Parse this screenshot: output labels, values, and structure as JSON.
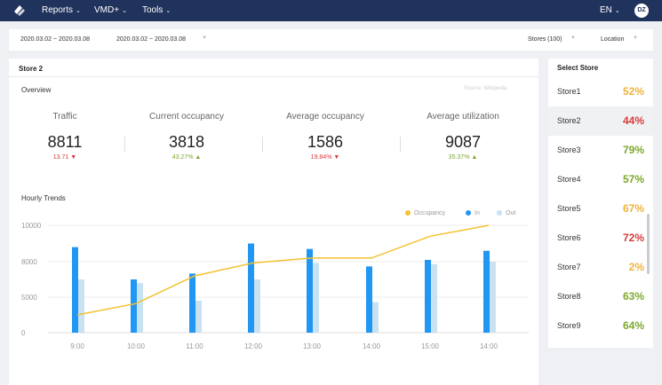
{
  "nav": {
    "menus": [
      {
        "label": "Reports"
      },
      {
        "label": "VMD+"
      },
      {
        "label": "Tools"
      }
    ],
    "language": "EN",
    "avatar_initials": "DZ",
    "colors": {
      "bar": "#20335c"
    }
  },
  "filters": {
    "date_range_1": "2020.03.02  ~  2020.03.08",
    "date_range_2": "2020.03.02  ~  2020.03.08",
    "stores": "Stores (100)",
    "location": "Location"
  },
  "main": {
    "title": "Store 2",
    "overview": {
      "title": "Overview",
      "source": "Source: Wikipedia",
      "kpis": [
        {
          "label": "Traffic",
          "value": "8811",
          "delta": "13.71",
          "trend": "down"
        },
        {
          "label": "Current occupancy",
          "value": "3818",
          "delta": "43.27%",
          "trend": "up"
        },
        {
          "label": "Average occupancy",
          "value": "1586",
          "delta": "19.84%",
          "trend": "down"
        },
        {
          "label": "Average utilization",
          "value": "9087",
          "delta": "35.37%",
          "trend": "up"
        }
      ],
      "colors": {
        "down": "#d93a3a",
        "up": "#7ca82b"
      }
    },
    "hourly": {
      "title": "Hourly Trends"
    }
  },
  "chart_data": {
    "type": "bar",
    "title": "Hourly Trends",
    "categories": [
      "9:00",
      "10:00",
      "11:00",
      "12:00",
      "13:00",
      "14:00",
      "15:00",
      "14:00"
    ],
    "series": [
      {
        "name": "In",
        "type": "bar",
        "color": "#2196f3",
        "values": [
          8800,
          6500,
          7000,
          9000,
          8700,
          7600,
          8100,
          8600
        ]
      },
      {
        "name": "Out",
        "type": "bar",
        "color": "#c9e2f2",
        "values": [
          6500,
          6200,
          4500,
          6500,
          7900,
          4300,
          7800,
          8000
        ]
      },
      {
        "name": "Occupancy",
        "type": "line",
        "color": "#f3c22f",
        "values": [
          2500,
          4100,
          6800,
          7900,
          8200,
          8200,
          9400,
          10000
        ]
      }
    ],
    "yticks": [
      0,
      5000,
      8000,
      10000
    ],
    "legend": "top-right",
    "grid": true
  },
  "side": {
    "title": "Select Store",
    "stores": [
      {
        "name": "Store1",
        "pct": "52%",
        "color": "#f0b23a"
      },
      {
        "name": "Store2",
        "pct": "44%",
        "color": "#d93a3a",
        "selected": true
      },
      {
        "name": "Store3",
        "pct": "79%",
        "color": "#7ca82b"
      },
      {
        "name": "Store4",
        "pct": "57%",
        "color": "#7ca82b"
      },
      {
        "name": "Store5",
        "pct": "67%",
        "color": "#f0b23a"
      },
      {
        "name": "Store6",
        "pct": "72%",
        "color": "#d93a3a"
      },
      {
        "name": "Store7",
        "pct": "2%",
        "color": "#f0b23a"
      },
      {
        "name": "Store8",
        "pct": "63%",
        "color": "#7ca82b"
      },
      {
        "name": "Store9",
        "pct": "64%",
        "color": "#7ca82b"
      }
    ]
  }
}
